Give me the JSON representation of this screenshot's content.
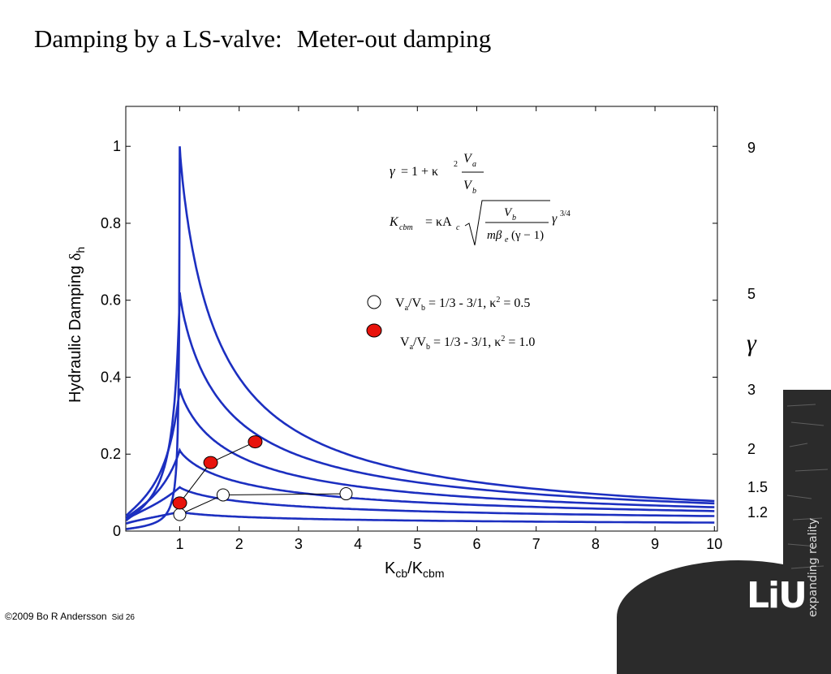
{
  "slide": {
    "title_left": "Damping by a LS-valve:",
    "title_right": "Meter-out damping",
    "footer_copyright": "©2009 Bo  R Andersson",
    "footer_slide": "Sid 26"
  },
  "brand": {
    "logo": "LiU",
    "tagline": "expanding reality",
    "panel_color": "#2b2b2b"
  },
  "chart_data": {
    "type": "line",
    "title": "",
    "xlabel": "K",
    "xlabel_sub1": "cb",
    "xlabel_mid": "/K",
    "xlabel_sub2": "cbm",
    "ylabel": "Hydraulic Damping",
    "ylabel_symbol": "δ",
    "ylabel_sub": "h",
    "xlim": [
      0.1,
      10
    ],
    "ylim": [
      0,
      1.1
    ],
    "xticks": [
      "1",
      "2",
      "3",
      "4",
      "5",
      "6",
      "7",
      "8",
      "9",
      "10"
    ],
    "yticks": [
      "0",
      "0.2",
      "0.4",
      "0.6",
      "0.8",
      "1"
    ],
    "ytick_values": [
      0,
      0.2,
      0.4,
      0.6,
      0.8,
      1.0
    ],
    "line_color": "#1c2fc0",
    "series": [
      {
        "gamma": "9",
        "peak": 1.0,
        "w": 0.012,
        "tail": 0.078
      },
      {
        "gamma": "5",
        "peak": 0.62,
        "w": 0.11,
        "tail": 0.072
      },
      {
        "gamma": "3",
        "peak": 0.37,
        "w": 0.28,
        "tail": 0.062
      },
      {
        "gamma": "2",
        "peak": 0.21,
        "w": 0.45,
        "tail": 0.052
      },
      {
        "gamma": "1.5",
        "peak": 0.114,
        "w": 0.85,
        "tail": 0.039
      },
      {
        "gamma": "1.2",
        "peak": 0.05,
        "w": 1.5,
        "tail": 0.022
      }
    ],
    "gamma_symbol": "γ",
    "legend": [
      {
        "marker": "open",
        "text": "V",
        "sub1": "a",
        "mid": "/V",
        "sub2": "b",
        "rest": " = 1/3 - 3/1, κ",
        "sup": "2",
        "end": " = 0.5"
      },
      {
        "marker": "filled",
        "text": "V",
        "sub1": "a",
        "mid": "/V",
        "sub2": "b",
        "rest": " = 1/3 - 3/1, κ",
        "sup": "2",
        "end": " = 1.0"
      }
    ],
    "open_points": [
      [
        1.0,
        0.043
      ],
      [
        1.73,
        0.094
      ],
      [
        3.8,
        0.097
      ]
    ],
    "filled_points": [
      [
        1.0,
        0.073
      ],
      [
        1.52,
        0.178
      ],
      [
        2.27,
        0.232
      ]
    ],
    "marker_fill": "#e8130c",
    "formula1": {
      "lhs": "γ",
      "op": "= 1 + κ",
      "sup": "2",
      "num": "V",
      "num_sub": "a",
      "den": "V",
      "den_sub": "b"
    },
    "formula2": {
      "lhs": "K",
      "lhs_sub": "cbm",
      "eq": "= κA",
      "eq_sub": "c",
      "num": "V",
      "num_sub": "b",
      "den_a": "mβ",
      "den_sub": "e",
      "den_b": "(γ − 1)",
      "tail": "γ",
      "tail_sup": "3/4"
    }
  }
}
